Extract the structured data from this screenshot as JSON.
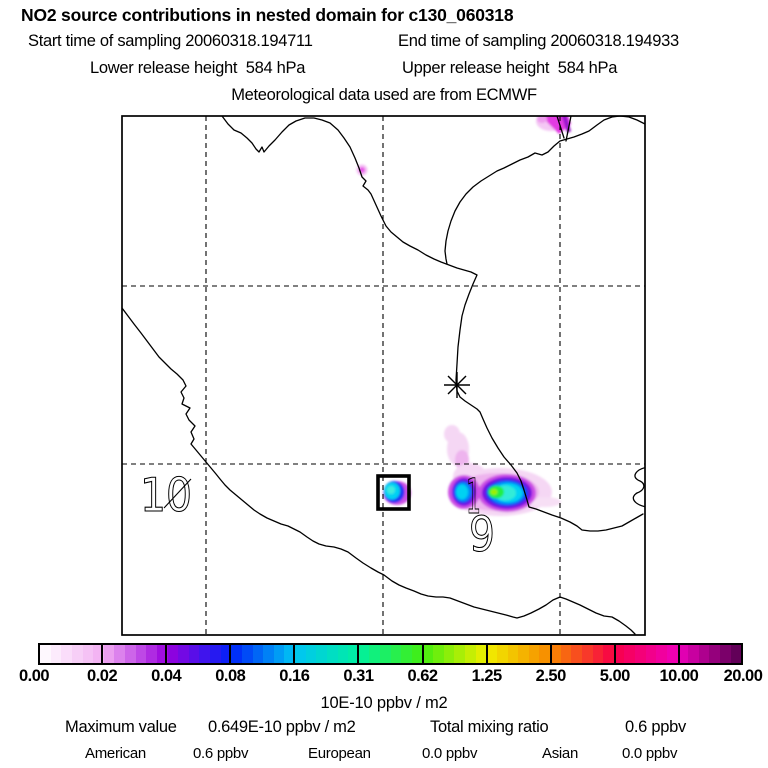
{
  "header": {
    "title": "NO2 source contributions in nested domain for c130_060318",
    "start_time": "Start time of sampling 20060318.194711",
    "end_time": "End time of sampling 20060318.194933",
    "lower_release": "Lower release height  584 hPa",
    "upper_release": "Upper release height  584 hPa",
    "met_source": "Meteorological data used are from ECMWF"
  },
  "map": {
    "region_label_10": "10",
    "region_label_1": "1",
    "region_label_9": "9",
    "marker": "asterisk-sampling-location",
    "grid_style": "dashed"
  },
  "colorbar": {
    "ticks": [
      "0.00",
      "0.02",
      "0.04",
      "0.08",
      "0.16",
      "0.31",
      "0.62",
      "1.25",
      "2.50",
      "5.00",
      "10.00",
      "20.00"
    ],
    "stop_colors": [
      "#ffffff",
      "#f2adf2",
      "#9900dd",
      "#0022f8",
      "#00c4f4",
      "#00f0a0",
      "#44ee11",
      "#f0ee00",
      "#f88800",
      "#f80048",
      "#ee00bb",
      "#55004f"
    ],
    "units": "10E-10 ppbv / m2"
  },
  "footer": {
    "max_label": "Maximum value",
    "max_value": "0.649E-10 ppbv / m2",
    "total_label": "Total mixing ratio",
    "total_value": "0.6 ppbv",
    "sources": [
      {
        "name": "American",
        "value": "0.6 ppbv"
      },
      {
        "name": "European",
        "value": "0.0 ppbv"
      },
      {
        "name": "Asian",
        "value": "0.0 ppbv"
      }
    ]
  },
  "chart_data": {
    "type": "heatmap",
    "title": "NO2 source contributions in nested domain for c130_060318",
    "subtitle_lines": [
      "Start time of sampling 20060318.194711   End time of sampling 20060318.194933",
      "Lower release height 584 hPa   Upper release height 584 hPa",
      "Meteorological data used are from ECMWF"
    ],
    "colorbar_ticks": [
      0.0,
      0.02,
      0.04,
      0.08,
      0.16,
      0.31,
      0.62,
      1.25,
      2.5,
      5.0,
      10.0,
      20.0
    ],
    "colorbar_units": "10E-10 ppbv / m2",
    "colorbar_scale": "logarithmic (doubling per segment)",
    "grid": {
      "style": "dashed",
      "vertical_gridlines": 3,
      "horizontal_gridlines": 2
    },
    "max_value": "0.649E-10 ppbv / m2",
    "total_mixing_ratio_ppbv": 0.6,
    "source_contributions": [
      {
        "region": "American",
        "mixing_ratio_ppbv": 0.6
      },
      {
        "region": "European",
        "mixing_ratio_ppbv": 0.0
      },
      {
        "region": "Asian",
        "mixing_ratio_ppbv": 0.0
      }
    ],
    "region_numbers_on_map": [
      "10",
      "1",
      "9"
    ],
    "features": [
      {
        "name": "main-plume",
        "location": "south-central near label 9, on coastline",
        "peak_colorbar_level": "green core ~0.6-1.25 with small yellow-green maximum"
      },
      {
        "name": "boxed-grid-cell",
        "location": "west of main plume",
        "description": "black square outline around cyan cell (~0.16-0.31)"
      },
      {
        "name": "secondary-spot",
        "location": "top edge at third vertical gridline",
        "peak_colorbar_level": "magenta ~0.02-0.04"
      },
      {
        "name": "tiny-spot",
        "location": "upper-middle near coastline",
        "peak_colorbar_level": "~0.02"
      },
      {
        "name": "sampling-marker",
        "location": "center of map on coastline",
        "symbol": "8-spoke asterisk"
      }
    ]
  }
}
